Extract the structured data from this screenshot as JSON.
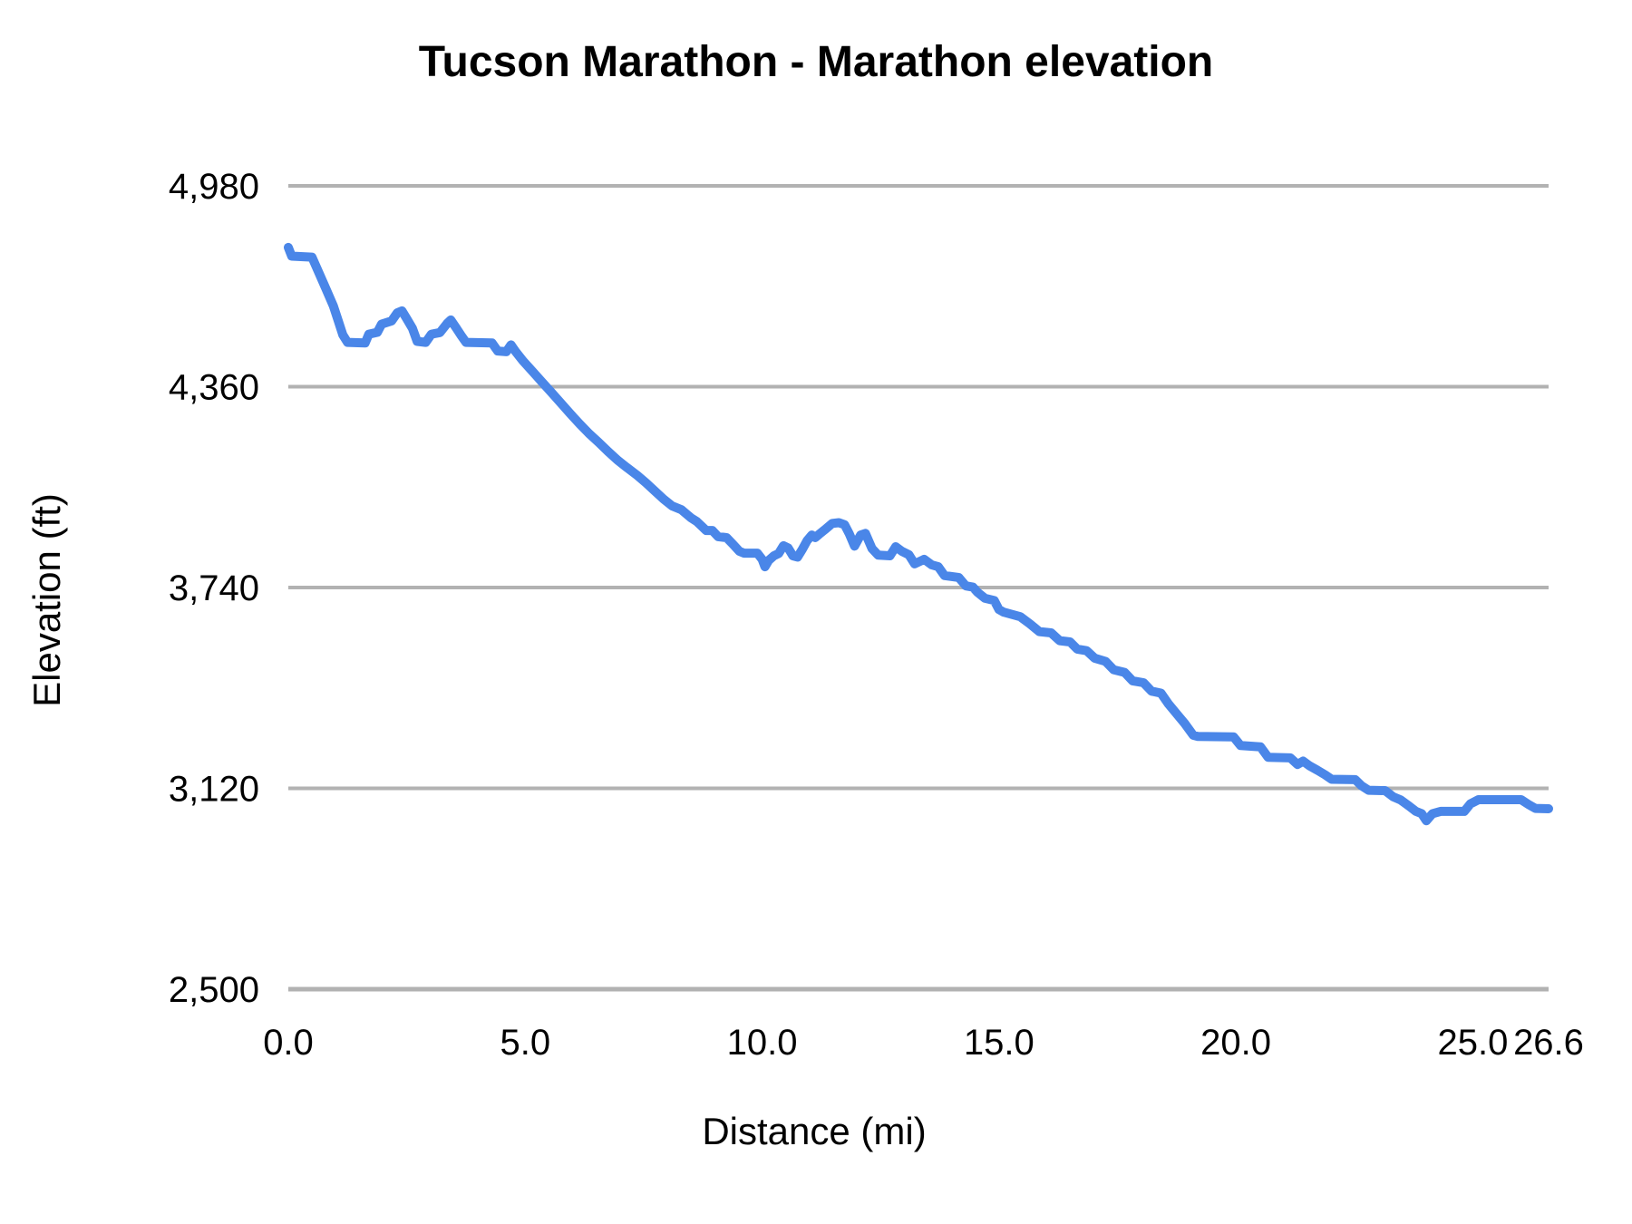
{
  "title": "Tucson Marathon - Marathon elevation",
  "chart_data": {
    "type": "line",
    "title": "Tucson Marathon - Marathon elevation",
    "xlabel": "Distance (mi)",
    "ylabel": "Elevation (ft)",
    "xlim": [
      0,
      26.6
    ],
    "ylim": [
      2500,
      4980
    ],
    "grid": true,
    "legend": "none",
    "colors": {
      "line": "#4a86e8",
      "grid": "#b2b2b2",
      "text": "#000000",
      "background": "#ffffff"
    },
    "x_ticks": [
      0.0,
      5.0,
      10.0,
      15.0,
      20.0,
      25.0,
      26.6
    ],
    "x_tick_labels": [
      "0.0",
      "5.0",
      "10.0",
      "15.0",
      "20.0",
      "25.0",
      "26.6"
    ],
    "y_ticks": [
      2500,
      3120,
      3740,
      4360,
      4980
    ],
    "y_tick_labels": [
      "2,500",
      "3,120",
      "3,740",
      "4,360",
      "4,980"
    ],
    "series": [
      {
        "name": "Marathon elevation",
        "points": [
          [
            0.0,
            4790
          ],
          [
            0.07,
            4763
          ],
          [
            0.5,
            4760
          ],
          [
            0.65,
            4710
          ],
          [
            0.8,
            4660
          ],
          [
            0.95,
            4610
          ],
          [
            1.05,
            4565
          ],
          [
            1.15,
            4520
          ],
          [
            1.25,
            4497
          ],
          [
            1.62,
            4495
          ],
          [
            1.7,
            4522
          ],
          [
            1.88,
            4528
          ],
          [
            1.97,
            4553
          ],
          [
            2.18,
            4563
          ],
          [
            2.3,
            4588
          ],
          [
            2.4,
            4594
          ],
          [
            2.5,
            4570
          ],
          [
            2.62,
            4540
          ],
          [
            2.72,
            4500
          ],
          [
            2.9,
            4497
          ],
          [
            3.02,
            4522
          ],
          [
            3.2,
            4527
          ],
          [
            3.35,
            4555
          ],
          [
            3.43,
            4566
          ],
          [
            3.55,
            4540
          ],
          [
            3.65,
            4518
          ],
          [
            3.75,
            4497
          ],
          [
            4.3,
            4495
          ],
          [
            4.42,
            4470
          ],
          [
            4.6,
            4468
          ],
          [
            4.7,
            4489
          ],
          [
            4.8,
            4468
          ],
          [
            4.95,
            4440
          ],
          [
            5.15,
            4408
          ],
          [
            5.35,
            4375
          ],
          [
            5.55,
            4343
          ],
          [
            5.75,
            4310
          ],
          [
            5.95,
            4277
          ],
          [
            6.15,
            4245
          ],
          [
            6.35,
            4215
          ],
          [
            6.55,
            4188
          ],
          [
            6.75,
            4160
          ],
          [
            6.95,
            4133
          ],
          [
            7.15,
            4110
          ],
          [
            7.35,
            4088
          ],
          [
            7.55,
            4063
          ],
          [
            7.72,
            4040
          ],
          [
            7.92,
            4013
          ],
          [
            8.1,
            3992
          ],
          [
            8.3,
            3980
          ],
          [
            8.5,
            3955
          ],
          [
            8.62,
            3944
          ],
          [
            8.72,
            3930
          ],
          [
            8.82,
            3916
          ],
          [
            8.95,
            3916
          ],
          [
            9.07,
            3897
          ],
          [
            9.25,
            3894
          ],
          [
            9.38,
            3874
          ],
          [
            9.52,
            3852
          ],
          [
            9.62,
            3846
          ],
          [
            9.9,
            3846
          ],
          [
            10.0,
            3827
          ],
          [
            10.06,
            3804
          ],
          [
            10.14,
            3824
          ],
          [
            10.25,
            3838
          ],
          [
            10.35,
            3845
          ],
          [
            10.45,
            3869
          ],
          [
            10.55,
            3862
          ],
          [
            10.65,
            3838
          ],
          [
            10.75,
            3834
          ],
          [
            10.85,
            3858
          ],
          [
            10.95,
            3885
          ],
          [
            11.05,
            3902
          ],
          [
            11.12,
            3894
          ],
          [
            11.2,
            3904
          ],
          [
            11.32,
            3918
          ],
          [
            11.48,
            3938
          ],
          [
            11.62,
            3940
          ],
          [
            11.74,
            3934
          ],
          [
            11.84,
            3906
          ],
          [
            11.95,
            3868
          ],
          [
            12.08,
            3902
          ],
          [
            12.18,
            3907
          ],
          [
            12.32,
            3860
          ],
          [
            12.45,
            3840
          ],
          [
            12.7,
            3838
          ],
          [
            12.82,
            3866
          ],
          [
            12.95,
            3852
          ],
          [
            13.1,
            3841
          ],
          [
            13.22,
            3813
          ],
          [
            13.42,
            3827
          ],
          [
            13.58,
            3810
          ],
          [
            13.72,
            3804
          ],
          [
            13.85,
            3777
          ],
          [
            14.15,
            3771
          ],
          [
            14.3,
            3745
          ],
          [
            14.45,
            3741
          ],
          [
            14.55,
            3725
          ],
          [
            14.7,
            3707
          ],
          [
            14.9,
            3700
          ],
          [
            15.0,
            3672
          ],
          [
            15.1,
            3664
          ],
          [
            15.45,
            3650
          ],
          [
            15.65,
            3628
          ],
          [
            15.85,
            3604
          ],
          [
            16.1,
            3600
          ],
          [
            16.28,
            3576
          ],
          [
            16.5,
            3572
          ],
          [
            16.65,
            3550
          ],
          [
            16.85,
            3545
          ],
          [
            17.02,
            3522
          ],
          [
            17.25,
            3512
          ],
          [
            17.42,
            3486
          ],
          [
            17.65,
            3478
          ],
          [
            17.82,
            3452
          ],
          [
            18.05,
            3446
          ],
          [
            18.22,
            3420
          ],
          [
            18.42,
            3414
          ],
          [
            18.58,
            3380
          ],
          [
            18.75,
            3350
          ],
          [
            18.92,
            3320
          ],
          [
            19.1,
            3284
          ],
          [
            19.2,
            3280
          ],
          [
            19.95,
            3279
          ],
          [
            20.1,
            3252
          ],
          [
            20.52,
            3248
          ],
          [
            20.68,
            3216
          ],
          [
            21.15,
            3214
          ],
          [
            21.3,
            3194
          ],
          [
            21.42,
            3204
          ],
          [
            21.55,
            3190
          ],
          [
            21.72,
            3176
          ],
          [
            21.88,
            3162
          ],
          [
            22.02,
            3148
          ],
          [
            22.52,
            3147
          ],
          [
            22.65,
            3128
          ],
          [
            22.8,
            3114
          ],
          [
            23.15,
            3113
          ],
          [
            23.32,
            3094
          ],
          [
            23.48,
            3084
          ],
          [
            23.65,
            3066
          ],
          [
            23.8,
            3049
          ],
          [
            23.92,
            3042
          ],
          [
            24.02,
            3020
          ],
          [
            24.15,
            3042
          ],
          [
            24.32,
            3049
          ],
          [
            24.82,
            3049
          ],
          [
            24.95,
            3072
          ],
          [
            25.12,
            3085
          ],
          [
            26.02,
            3085
          ],
          [
            26.18,
            3070
          ],
          [
            26.32,
            3058
          ],
          [
            26.6,
            3057
          ]
        ]
      }
    ]
  }
}
